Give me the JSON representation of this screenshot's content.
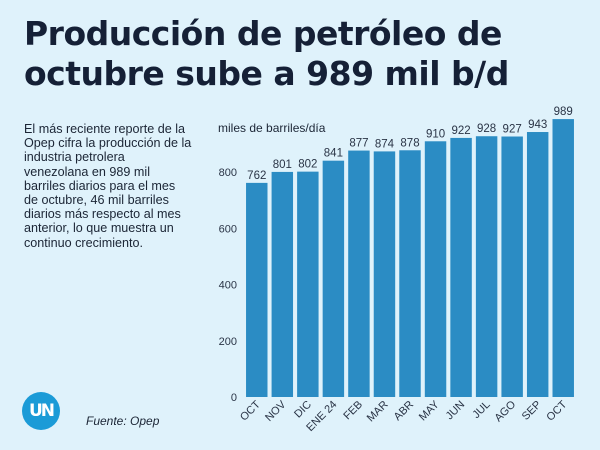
{
  "header": {
    "title_line1": "Producción de petróleo de",
    "title_line2": "octubre sube a 989 mil b/d"
  },
  "description": "El más reciente reporte de la Opep cifra la producción de la industria petrolera venezolana en 989 mil barriles diarios para el mes de octubre, 46 mil barriles diarios más respecto al mes anterior, lo que muestra un continuo crecimiento.",
  "footer": {
    "logo_text": "UN",
    "source": "Fuente: Opep"
  },
  "colors": {
    "bar": "#2b8cc4",
    "background": "#dff2fb",
    "logo": "#1b9bd7"
  },
  "chart_data": {
    "type": "bar",
    "title": "",
    "ylabel": "miles de barriles/día",
    "xlabel": "",
    "categories": [
      "OCT",
      "NOV",
      "DIC",
      "ENE 24",
      "FEB",
      "MAR",
      "ABR",
      "MAY",
      "JUN",
      "JUL",
      "AGO",
      "SEP",
      "OCT"
    ],
    "values": [
      762,
      801,
      802,
      841,
      877,
      874,
      878,
      910,
      922,
      928,
      927,
      943,
      989
    ],
    "ylim": [
      0,
      1000
    ],
    "yticks": [
      0,
      200,
      400,
      600,
      800
    ],
    "grid": false,
    "legend": "none"
  }
}
